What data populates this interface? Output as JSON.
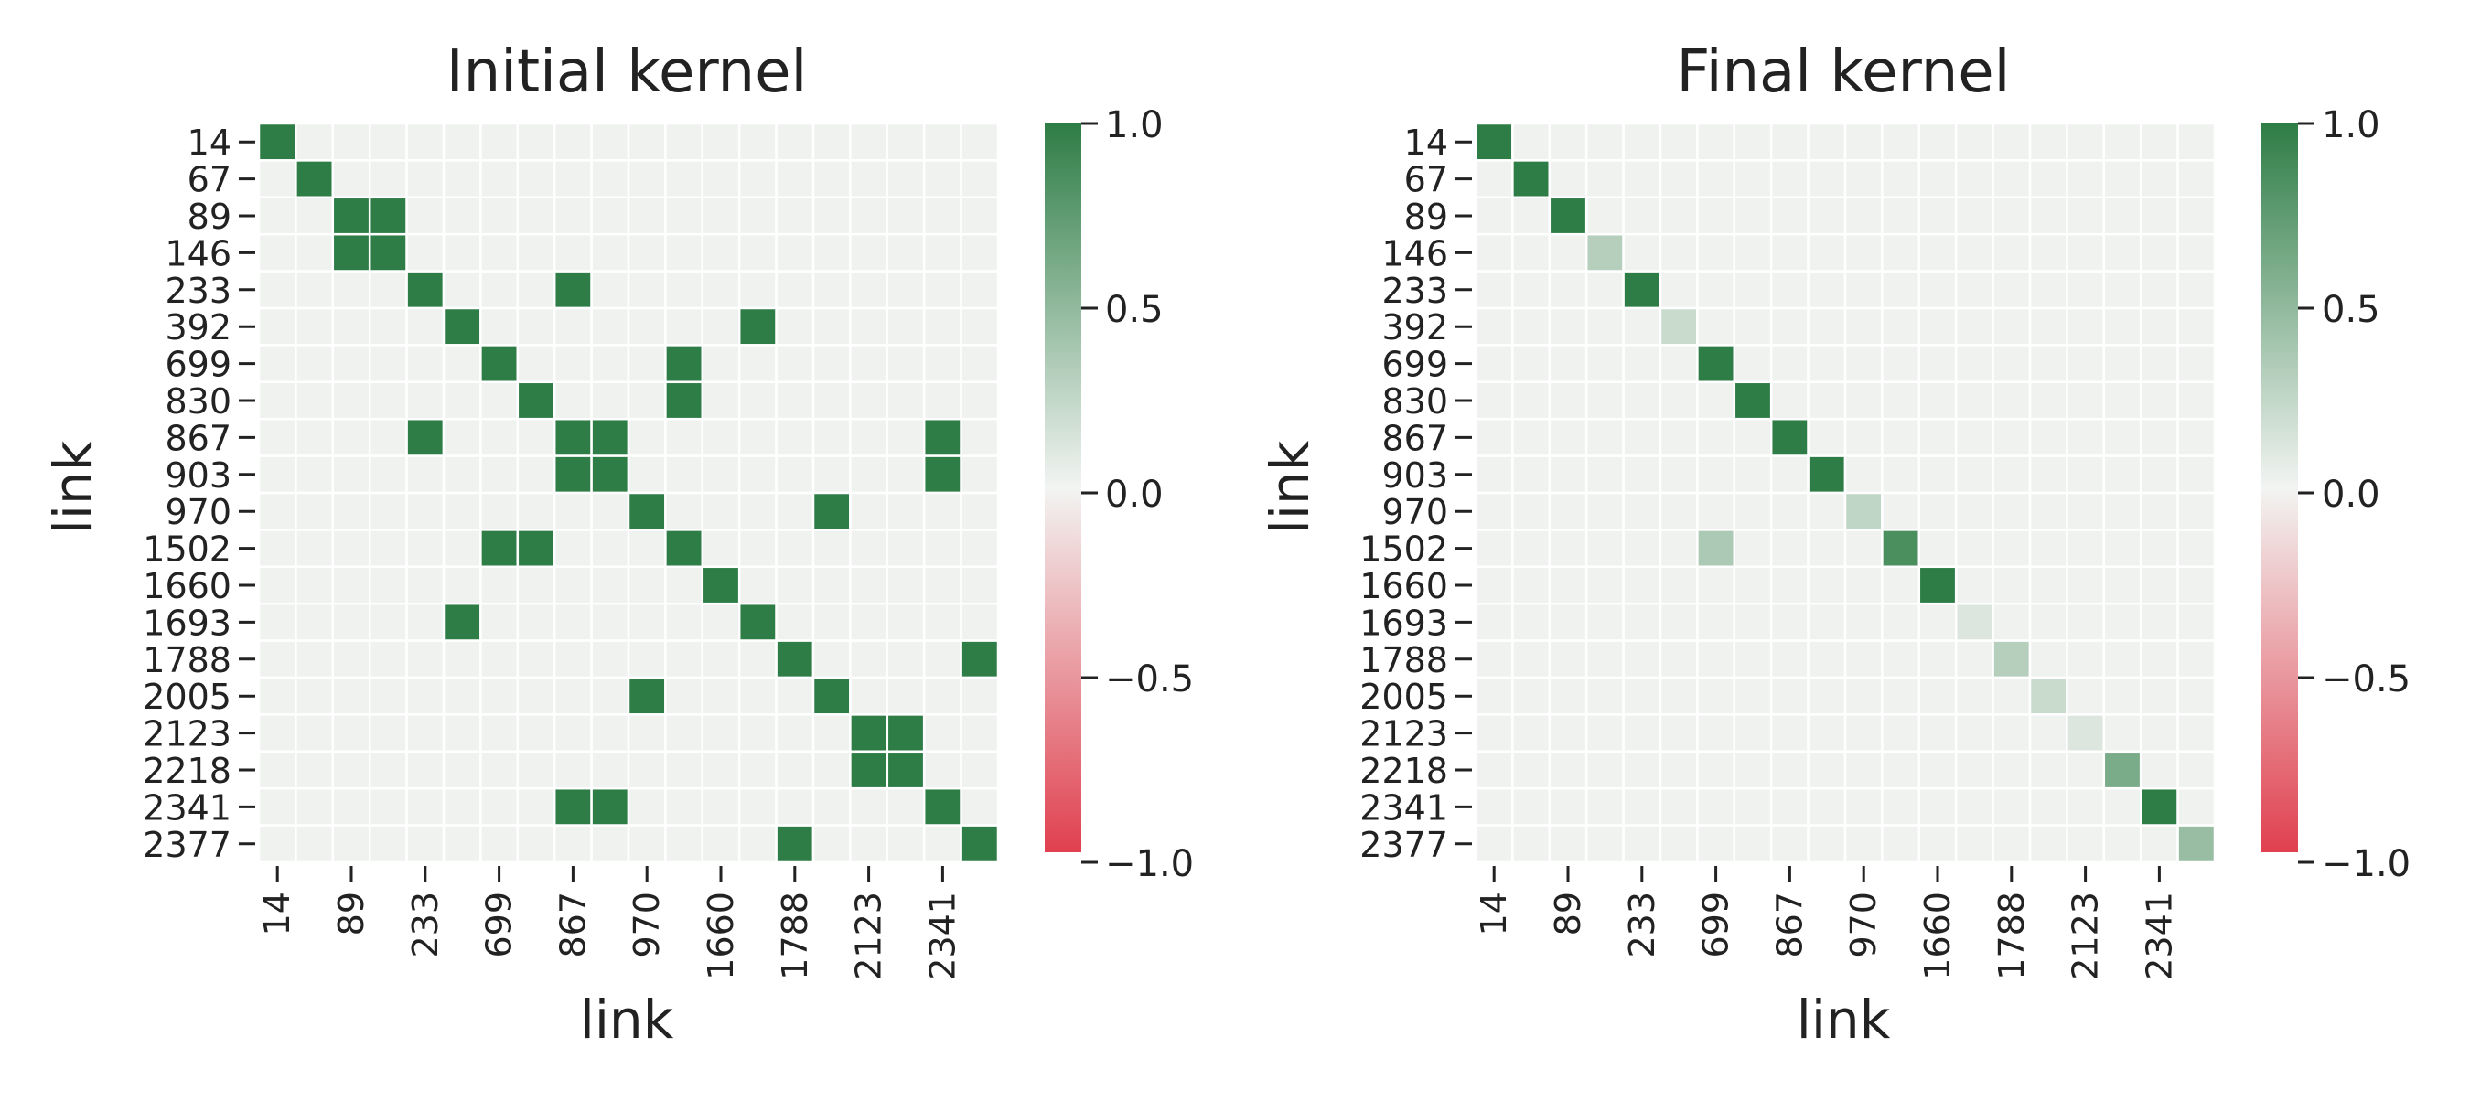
{
  "chart_data": [
    {
      "type": "heatmap",
      "title": "Initial kernel",
      "xlabel": "link",
      "ylabel": "link",
      "row_labels": [
        "14",
        "67",
        "89",
        "146",
        "233",
        "392",
        "699",
        "830",
        "867",
        "903",
        "970",
        "1502",
        "1660",
        "1693",
        "1788",
        "2005",
        "2123",
        "2218",
        "2341",
        "2377"
      ],
      "x_tick_labels": [
        "14",
        "89",
        "233",
        "699",
        "867",
        "970",
        "1660",
        "1788",
        "2123",
        "2341"
      ],
      "x_tick_indices": [
        0,
        2,
        4,
        6,
        8,
        10,
        12,
        14,
        16,
        18
      ],
      "vmin": -1.0,
      "vmax": 1.0,
      "colorbar_ticks": [
        "1.0",
        "0.5",
        "0.0",
        "−0.5",
        "−1.0"
      ],
      "colorbar_tick_values": [
        1.0,
        0.5,
        0.0,
        -0.5,
        -1.0
      ],
      "values": [
        [
          1,
          0,
          0,
          0,
          0,
          0,
          0,
          0,
          0,
          0,
          0,
          0,
          0,
          0,
          0,
          0,
          0,
          0,
          0,
          0
        ],
        [
          0,
          1,
          0,
          0,
          0,
          0,
          0,
          0,
          0,
          0,
          0,
          0,
          0,
          0,
          0,
          0,
          0,
          0,
          0,
          0
        ],
        [
          0,
          0,
          1,
          1,
          0,
          0,
          0,
          0,
          0,
          0,
          0,
          0,
          0,
          0,
          0,
          0,
          0,
          0,
          0,
          0
        ],
        [
          0,
          0,
          1,
          1,
          0,
          0,
          0,
          0,
          0,
          0,
          0,
          0,
          0,
          0,
          0,
          0,
          0,
          0,
          0,
          0
        ],
        [
          0,
          0,
          0,
          0,
          1,
          0,
          0,
          0,
          1,
          0,
          0,
          0,
          0,
          0,
          0,
          0,
          0,
          0,
          0,
          0
        ],
        [
          0,
          0,
          0,
          0,
          0,
          1,
          0,
          0,
          0,
          0,
          0,
          0,
          0,
          1,
          0,
          0,
          0,
          0,
          0,
          0
        ],
        [
          0,
          0,
          0,
          0,
          0,
          0,
          1,
          0,
          0,
          0,
          0,
          1,
          0,
          0,
          0,
          0,
          0,
          0,
          0,
          0
        ],
        [
          0,
          0,
          0,
          0,
          0,
          0,
          0,
          1,
          0,
          0,
          0,
          1,
          0,
          0,
          0,
          0,
          0,
          0,
          0,
          0
        ],
        [
          0,
          0,
          0,
          0,
          1,
          0,
          0,
          0,
          1,
          1,
          0,
          0,
          0,
          0,
          0,
          0,
          0,
          0,
          1,
          0
        ],
        [
          0,
          0,
          0,
          0,
          0,
          0,
          0,
          0,
          1,
          1,
          0,
          0,
          0,
          0,
          0,
          0,
          0,
          0,
          1,
          0
        ],
        [
          0,
          0,
          0,
          0,
          0,
          0,
          0,
          0,
          0,
          0,
          1,
          0,
          0,
          0,
          0,
          1,
          0,
          0,
          0,
          0
        ],
        [
          0,
          0,
          0,
          0,
          0,
          0,
          1,
          1,
          0,
          0,
          0,
          1,
          0,
          0,
          0,
          0,
          0,
          0,
          0,
          0
        ],
        [
          0,
          0,
          0,
          0,
          0,
          0,
          0,
          0,
          0,
          0,
          0,
          0,
          1,
          0,
          0,
          0,
          0,
          0,
          0,
          0
        ],
        [
          0,
          0,
          0,
          0,
          0,
          1,
          0,
          0,
          0,
          0,
          0,
          0,
          0,
          1,
          0,
          0,
          0,
          0,
          0,
          0
        ],
        [
          0,
          0,
          0,
          0,
          0,
          0,
          0,
          0,
          0,
          0,
          0,
          0,
          0,
          0,
          1,
          0,
          0,
          0,
          0,
          1
        ],
        [
          0,
          0,
          0,
          0,
          0,
          0,
          0,
          0,
          0,
          0,
          1,
          0,
          0,
          0,
          0,
          1,
          0,
          0,
          0,
          0
        ],
        [
          0,
          0,
          0,
          0,
          0,
          0,
          0,
          0,
          0,
          0,
          0,
          0,
          0,
          0,
          0,
          0,
          1,
          1,
          0,
          0
        ],
        [
          0,
          0,
          0,
          0,
          0,
          0,
          0,
          0,
          0,
          0,
          0,
          0,
          0,
          0,
          0,
          0,
          1,
          1,
          0,
          0
        ],
        [
          0,
          0,
          0,
          0,
          0,
          0,
          0,
          0,
          1,
          1,
          0,
          0,
          0,
          0,
          0,
          0,
          0,
          0,
          1,
          0
        ],
        [
          0,
          0,
          0,
          0,
          0,
          0,
          0,
          0,
          0,
          0,
          0,
          0,
          0,
          0,
          1,
          0,
          0,
          0,
          0,
          1
        ]
      ]
    },
    {
      "type": "heatmap",
      "title": "Final kernel",
      "xlabel": "link",
      "ylabel": "link",
      "row_labels": [
        "14",
        "67",
        "89",
        "146",
        "233",
        "392",
        "699",
        "830",
        "867",
        "903",
        "970",
        "1502",
        "1660",
        "1693",
        "1788",
        "2005",
        "2123",
        "2218",
        "2341",
        "2377"
      ],
      "x_tick_labels": [
        "14",
        "89",
        "233",
        "699",
        "867",
        "970",
        "1660",
        "1788",
        "2123",
        "2341"
      ],
      "x_tick_indices": [
        0,
        2,
        4,
        6,
        8,
        10,
        12,
        14,
        16,
        18
      ],
      "vmin": -1.0,
      "vmax": 1.0,
      "colorbar_ticks": [
        "1.0",
        "0.5",
        "0.0",
        "−0.5",
        "−1.0"
      ],
      "colorbar_tick_values": [
        1.0,
        0.5,
        0.0,
        -0.5,
        -1.0
      ],
      "values": [
        [
          1,
          0,
          0,
          0,
          0,
          0,
          0,
          0,
          0,
          0,
          0,
          0,
          0,
          0,
          0,
          0,
          0,
          0,
          0,
          0
        ],
        [
          0,
          1,
          0,
          0,
          0,
          0,
          0,
          0,
          0,
          0,
          0,
          0,
          0,
          0,
          0,
          0,
          0,
          0,
          0,
          0
        ],
        [
          0,
          0,
          1,
          0,
          0,
          0,
          0,
          0,
          0,
          0,
          0,
          0,
          0,
          0,
          0,
          0,
          0,
          0,
          0,
          0
        ],
        [
          0,
          0,
          0,
          0.3,
          0,
          0,
          0,
          0,
          0,
          0,
          0,
          0,
          0,
          0,
          0,
          0,
          0,
          0,
          0,
          0
        ],
        [
          0,
          0,
          0,
          0,
          1,
          0,
          0,
          0,
          0,
          0,
          0,
          0,
          0,
          0,
          0,
          0,
          0,
          0,
          0,
          0
        ],
        [
          0,
          0,
          0,
          0,
          0,
          0.2,
          0,
          0,
          0,
          0,
          0,
          0,
          0,
          0,
          0,
          0,
          0,
          0,
          0,
          0
        ],
        [
          0,
          0,
          0,
          0,
          0,
          0,
          1,
          0,
          0,
          0,
          0,
          0,
          0,
          0,
          0,
          0,
          0,
          0,
          0,
          0
        ],
        [
          0,
          0,
          0,
          0,
          0,
          0,
          0,
          1,
          0,
          0,
          0,
          0,
          0,
          0,
          0,
          0,
          0,
          0,
          0,
          0
        ],
        [
          0,
          0,
          0,
          0,
          0,
          0,
          0,
          0,
          1,
          0,
          0,
          0,
          0,
          0,
          0,
          0,
          0,
          0,
          0,
          0
        ],
        [
          0,
          0,
          0,
          0,
          0,
          0,
          0,
          0,
          0,
          1,
          0,
          0,
          0,
          0,
          0,
          0,
          0,
          0,
          0,
          0
        ],
        [
          0,
          0,
          0,
          0,
          0,
          0,
          0,
          0,
          0,
          0,
          0.25,
          0,
          0,
          0,
          0,
          0,
          0,
          0,
          0,
          0
        ],
        [
          0,
          0,
          0,
          0,
          0,
          0,
          0.35,
          0,
          0,
          0,
          0,
          0.85,
          0,
          0,
          0,
          0,
          0,
          0,
          0,
          0
        ],
        [
          0,
          0,
          0,
          0,
          0,
          0,
          0,
          0,
          0,
          0,
          0,
          0,
          1,
          0,
          0,
          0,
          0,
          0,
          0,
          0
        ],
        [
          0,
          0,
          0,
          0,
          0,
          0,
          0,
          0,
          0,
          0,
          0,
          0,
          0,
          0.1,
          0,
          0,
          0,
          0,
          0,
          0
        ],
        [
          0,
          0,
          0,
          0,
          0,
          0,
          0,
          0,
          0,
          0,
          0,
          0,
          0,
          0,
          0.3,
          0,
          0,
          0,
          0,
          0
        ],
        [
          0,
          0,
          0,
          0,
          0,
          0,
          0,
          0,
          0,
          0,
          0,
          0,
          0,
          0,
          0,
          0.2,
          0,
          0,
          0,
          0
        ],
        [
          0,
          0,
          0,
          0,
          0,
          0,
          0,
          0,
          0,
          0,
          0,
          0,
          0,
          0,
          0,
          0,
          0.1,
          0,
          0,
          0
        ],
        [
          0,
          0,
          0,
          0,
          0,
          0,
          0,
          0,
          0,
          0,
          0,
          0,
          0,
          0,
          0,
          0,
          0,
          0.6,
          0,
          0
        ],
        [
          0,
          0,
          0,
          0,
          0,
          0,
          0,
          0,
          0,
          0,
          0,
          0,
          0,
          0,
          0,
          0,
          0,
          0,
          1,
          0
        ],
        [
          0,
          0,
          0,
          0,
          0,
          0,
          0,
          0,
          0,
          0,
          0,
          0,
          0,
          0,
          0,
          0,
          0,
          0,
          0,
          0.45
        ]
      ]
    }
  ],
  "colors": {
    "positive": "#2e7d46",
    "neutral": "#eff2ef",
    "negative": "#e0404f",
    "grid": "#ffffff",
    "text": "#222222"
  }
}
